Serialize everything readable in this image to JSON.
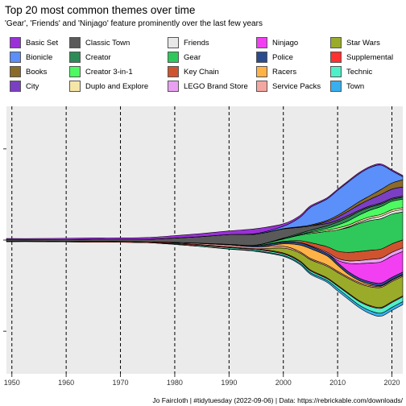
{
  "chart_data": {
    "type": "area",
    "subtype": "streamgraph",
    "title": "Top 20 most common themes over time",
    "subtitle": "'Gear', 'Friends' and 'Ninjago' feature prominently over the last few years",
    "caption": "Jo Faircloth | #tidytuesday (2022-09-06) | Data: https://rebrickable.com/downloads/",
    "xlabel": "",
    "ylabel": "",
    "xlim": [
      1949,
      2022
    ],
    "ylim": [
      -440,
      440
    ],
    "x_ticks": [
      1950,
      1960,
      1970,
      1980,
      1990,
      2000,
      2010,
      2020
    ],
    "grid": "dashed vertical lines at decades",
    "legend_position": "top",
    "legend_columns": 5,
    "x": [
      1949,
      1955,
      1960,
      1965,
      1970,
      1975,
      1980,
      1985,
      1990,
      1995,
      2000,
      2003,
      2005,
      2008,
      2010,
      2012,
      2014,
      2016,
      2018,
      2020,
      2022
    ],
    "series": [
      {
        "name": "Basic Set",
        "color": "#9b30d9",
        "values": [
          4,
          4,
          5,
          5,
          5,
          6,
          8,
          10,
          12,
          16,
          8,
          6,
          5,
          4,
          4,
          4,
          4,
          4,
          4,
          4,
          4
        ]
      },
      {
        "name": "Bionicle",
        "color": "#5b8ff9",
        "values": [
          0,
          0,
          0,
          0,
          0,
          0,
          0,
          0,
          0,
          2,
          8,
          30,
          58,
          70,
          82,
          88,
          92,
          92,
          80,
          40,
          10
        ]
      },
      {
        "name": "Books",
        "color": "#8b6b2a",
        "values": [
          0,
          0,
          0,
          0,
          0,
          0,
          0,
          0,
          0,
          0,
          1,
          2,
          3,
          4,
          6,
          8,
          10,
          12,
          16,
          20,
          24
        ]
      },
      {
        "name": "City",
        "color": "#7b3fc4",
        "values": [
          0,
          0,
          0,
          0,
          0,
          0,
          0,
          0,
          0,
          0,
          0,
          0,
          0,
          6,
          10,
          14,
          18,
          22,
          28,
          30,
          30
        ]
      },
      {
        "name": "Classic Town",
        "color": "#5a5a5a",
        "values": [
          4,
          4,
          5,
          6,
          6,
          8,
          14,
          22,
          32,
          36,
          30,
          20,
          14,
          8,
          6,
          6,
          4,
          4,
          4,
          4,
          4
        ]
      },
      {
        "name": "Creator",
        "color": "#2e8b57",
        "values": [
          0,
          0,
          0,
          0,
          0,
          0,
          0,
          0,
          0,
          0,
          2,
          4,
          6,
          8,
          10,
          12,
          12,
          10,
          8,
          6,
          6
        ]
      },
      {
        "name": "Creator 3-in-1",
        "color": "#4dfa62",
        "values": [
          0,
          0,
          0,
          0,
          0,
          0,
          0,
          0,
          0,
          0,
          0,
          0,
          2,
          6,
          10,
          14,
          18,
          22,
          26,
          28,
          28
        ]
      },
      {
        "name": "Duplo and Explore",
        "color": "#f5e6a8",
        "values": [
          0,
          0,
          0,
          0,
          0,
          0,
          0,
          0,
          0,
          0,
          1,
          2,
          3,
          4,
          6,
          6,
          6,
          6,
          6,
          6,
          6
        ]
      },
      {
        "name": "Friends",
        "color": "#e8e8e8",
        "values": [
          0,
          0,
          0,
          0,
          0,
          0,
          0,
          0,
          0,
          0,
          0,
          0,
          0,
          0,
          0,
          2,
          4,
          6,
          8,
          8,
          8
        ]
      },
      {
        "name": "Gear",
        "color": "#2ec95a",
        "values": [
          0,
          0,
          0,
          0,
          0,
          0,
          0,
          0,
          0,
          2,
          8,
          18,
          30,
          50,
          70,
          82,
          92,
          98,
          100,
          98,
          92
        ]
      },
      {
        "name": "Key Chain",
        "color": "#d0532f",
        "values": [
          0,
          0,
          0,
          0,
          0,
          0,
          0,
          0,
          0,
          0,
          2,
          6,
          10,
          18,
          24,
          28,
          30,
          30,
          30,
          28,
          26
        ]
      },
      {
        "name": "LEGO Brand Store",
        "color": "#e9a0f2",
        "values": [
          0,
          0,
          0,
          0,
          0,
          0,
          0,
          0,
          0,
          0,
          0,
          0,
          2,
          4,
          6,
          8,
          10,
          12,
          12,
          12,
          12
        ]
      },
      {
        "name": "Ninjago",
        "color": "#f23ff2",
        "values": [
          0,
          0,
          0,
          0,
          0,
          0,
          0,
          0,
          0,
          0,
          0,
          0,
          0,
          0,
          8,
          28,
          48,
          62,
          70,
          70,
          68
        ]
      },
      {
        "name": "Police",
        "color": "#2a4c8c",
        "values": [
          0,
          0,
          0,
          0,
          0,
          0,
          0,
          1,
          2,
          4,
          6,
          8,
          8,
          8,
          8,
          8,
          8,
          8,
          8,
          8,
          8
        ]
      },
      {
        "name": "Racers",
        "color": "#ffb347",
        "values": [
          0,
          0,
          0,
          0,
          0,
          0,
          0,
          0,
          0,
          0,
          8,
          22,
          32,
          30,
          20,
          10,
          6,
          4,
          2,
          2,
          2
        ]
      },
      {
        "name": "Service Packs",
        "color": "#f4a7a0",
        "values": [
          0,
          0,
          0,
          0,
          0,
          0,
          2,
          4,
          6,
          6,
          6,
          4,
          4,
          4,
          4,
          4,
          4,
          4,
          4,
          4,
          4
        ]
      },
      {
        "name": "Star Wars",
        "color": "#9aab2a",
        "values": [
          0,
          0,
          0,
          0,
          0,
          0,
          0,
          0,
          0,
          0,
          16,
          26,
          34,
          38,
          42,
          48,
          56,
          62,
          66,
          66,
          64
        ]
      },
      {
        "name": "Supplemental",
        "color": "#ff3030",
        "values": [
          2,
          2,
          2,
          3,
          3,
          3,
          3,
          3,
          3,
          3,
          3,
          3,
          3,
          3,
          3,
          3,
          3,
          3,
          3,
          3,
          3
        ]
      },
      {
        "name": "Technic",
        "color": "#4ff0c8",
        "values": [
          0,
          0,
          0,
          0,
          0,
          0,
          2,
          3,
          4,
          4,
          5,
          5,
          6,
          6,
          8,
          10,
          12,
          14,
          16,
          16,
          16
        ]
      },
      {
        "name": "Town",
        "color": "#38b0f0",
        "values": [
          0,
          0,
          0,
          0,
          0,
          0,
          0,
          0,
          1,
          2,
          3,
          4,
          5,
          6,
          8,
          8,
          8,
          10,
          10,
          10,
          10
        ]
      }
    ]
  }
}
